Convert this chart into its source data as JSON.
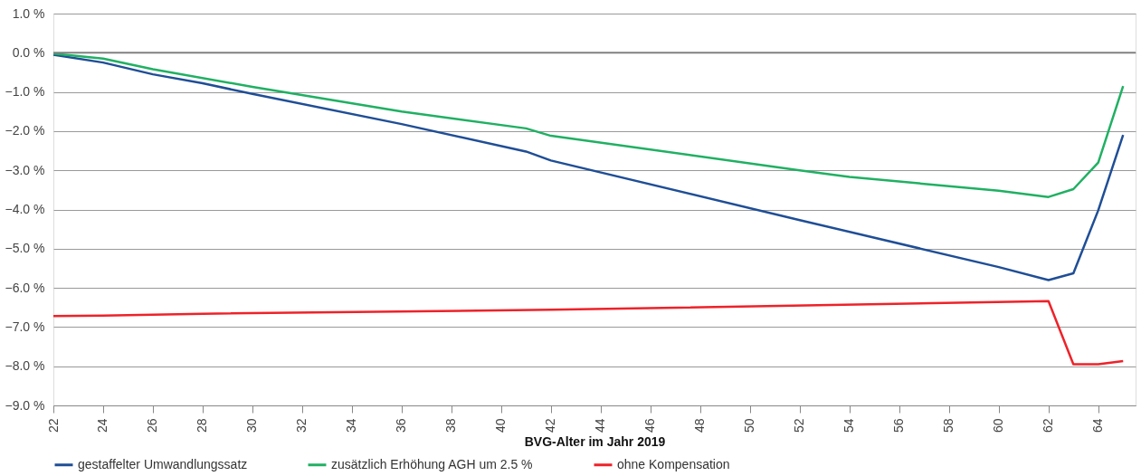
{
  "chart_data": {
    "type": "line",
    "xlabel": "BVG-Alter im Jahr 2019",
    "series": [
      {
        "name": "gestaffelter Umwandlungssatz",
        "color": "#1f4e96",
        "x": [
          22,
          24,
          26,
          28,
          30,
          36,
          41,
          42,
          52,
          60,
          62,
          63,
          64,
          65
        ],
        "values": [
          -0.05,
          -0.25,
          -0.55,
          -0.78,
          -1.05,
          -1.82,
          -2.52,
          -2.75,
          -4.27,
          -5.47,
          -5.8,
          -5.63,
          -4.02,
          -2.1
        ]
      },
      {
        "name": "zusätzlich Erhöhung AGH um 2.5 %",
        "color": "#20b063",
        "x": [
          22,
          24,
          26,
          30,
          36,
          41,
          42,
          52,
          54,
          60,
          62,
          63,
          64,
          65
        ],
        "values": [
          -0.02,
          -0.15,
          -0.42,
          -0.87,
          -1.5,
          -1.93,
          -2.12,
          -3.0,
          -3.17,
          -3.52,
          -3.68,
          -3.48,
          -2.8,
          -0.85
        ]
      },
      {
        "name": "ohne Kompensation",
        "color": "#ee2229",
        "x": [
          22,
          24,
          28,
          42,
          62,
          63,
          64,
          65
        ],
        "values": [
          -6.72,
          -6.71,
          -6.66,
          -6.56,
          -6.34,
          -7.95,
          -7.95,
          -7.87
        ]
      }
    ],
    "xlim": [
      22,
      65.5
    ],
    "xticks": [
      22,
      24,
      26,
      28,
      30,
      32,
      34,
      36,
      38,
      40,
      42,
      44,
      46,
      48,
      50,
      52,
      54,
      56,
      58,
      60,
      62,
      64
    ],
    "ylim": [
      -9,
      1
    ],
    "yticks": [
      {
        "value": 1,
        "label": "1.0 %"
      },
      {
        "value": 0,
        "label": "0.0 %"
      },
      {
        "value": -1,
        "label": "−1.0 %"
      },
      {
        "value": -2,
        "label": "−2.0 %"
      },
      {
        "value": -3,
        "label": "−3.0 %"
      },
      {
        "value": -4,
        "label": "−4.0 %"
      },
      {
        "value": -5,
        "label": "−5.0 %"
      },
      {
        "value": -6,
        "label": "−6.0 %"
      },
      {
        "value": -7,
        "label": "−7.0 %"
      },
      {
        "value": -8,
        "label": "−8.0 %"
      },
      {
        "value": -9,
        "label": "−9.0 %"
      }
    ],
    "ref_lines": [
      {
        "axis": "y",
        "value": 0,
        "color": "#808080"
      }
    ],
    "grid": "y",
    "legend": "bottom left",
    "marker": "none",
    "line_style": "solid"
  }
}
